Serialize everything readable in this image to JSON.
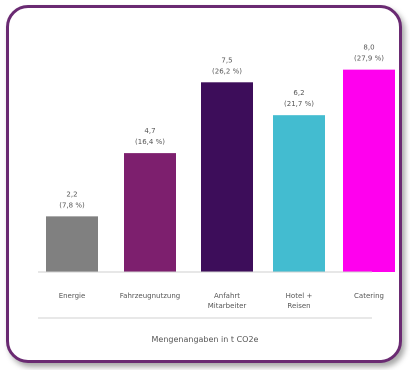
{
  "chart_data": {
    "type": "bar",
    "categories": [
      "Energie",
      "Fahrzeugnutzung",
      "Anfahrt Mitarbeiter",
      "Hotel + Reisen",
      "Catering"
    ],
    "category_lines": [
      [
        "Energie"
      ],
      [
        "Fahrzeugnutzung"
      ],
      [
        "Anfahrt",
        "Mitarbeiter"
      ],
      [
        "Hotel +",
        "Reisen"
      ],
      [
        "Catering"
      ]
    ],
    "values": [
      2.2,
      4.7,
      7.5,
      6.2,
      8.0
    ],
    "value_labels": [
      "2,2",
      "4,7",
      "7,5",
      "6,2",
      "8,0"
    ],
    "percent_labels": [
      "(7,8 %)",
      "(16,4 %)",
      "(26,2 %)",
      "(21,7 %)",
      "(27,9 %)"
    ],
    "colors": [
      "#808080",
      "#7d1f6e",
      "#3d0d5a",
      "#43bcd0",
      "#ff00ee"
    ],
    "ylim": [
      0,
      8.5
    ],
    "grid": false,
    "footnote": "Mengenangaben in t CO2e"
  }
}
